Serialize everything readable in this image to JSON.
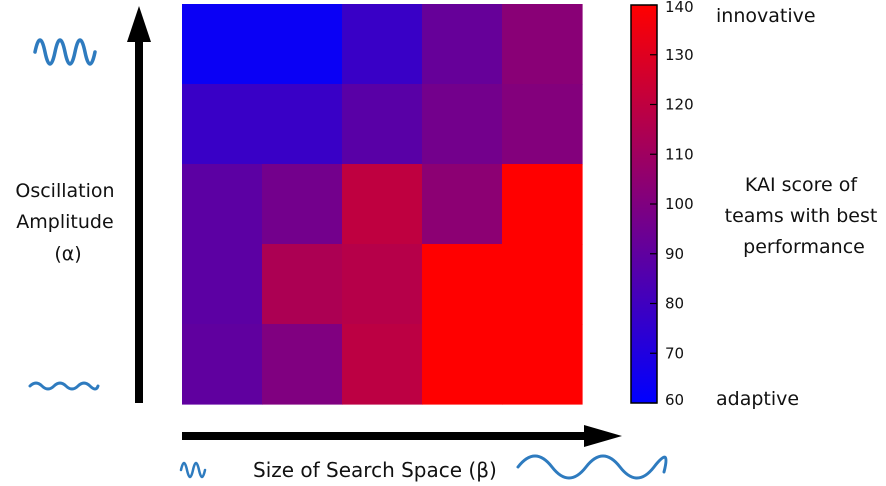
{
  "chart_data": {
    "type": "heatmap",
    "title": "",
    "rows": 5,
    "cols": 5,
    "values": [
      [
        63,
        63,
        78,
        92,
        103
      ],
      [
        78,
        78,
        88,
        96,
        101
      ],
      [
        89,
        96,
        120,
        104,
        140
      ],
      [
        89,
        114,
        117,
        140,
        140
      ],
      [
        90,
        100,
        119,
        140,
        140
      ]
    ],
    "color_min": 60,
    "color_max": 140,
    "colorscale": [
      "#0000ff",
      "#ff0000"
    ],
    "colorbar": {
      "ticks": [
        60,
        70,
        80,
        90,
        100,
        110,
        120,
        130,
        140
      ],
      "low_label": "adaptive",
      "high_label": "innovative",
      "title_lines": [
        "KAI score of",
        "teams with best",
        "performance"
      ]
    },
    "ylabel_lines": [
      "Oscillation",
      "Amplitude",
      "(α)"
    ],
    "xlabel": "Size of Search Space (β)",
    "icon_color": "#2e7bbf"
  }
}
